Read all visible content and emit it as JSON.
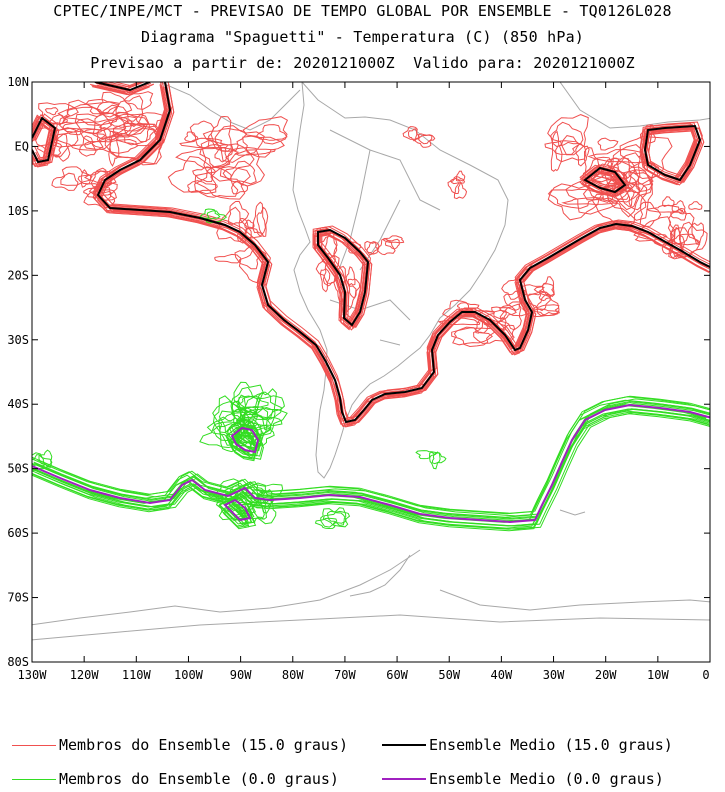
{
  "title": {
    "line1": "CPTEC/INPE/MCT - PREVISAO DE TEMPO GLOBAL POR ENSEMBLE - TQ0126L028",
    "line2": "Diagrama \"Spaguetti\" - Temperatura (C) (850 hPa)",
    "line3": "Previsao a partir de: 2020121000Z  Valido para: 2020121000Z"
  },
  "map": {
    "lon_range": [
      -130,
      0
    ],
    "lat_range": [
      -80,
      10
    ],
    "x_ticks": [
      "130W",
      "120W",
      "110W",
      "100W",
      "90W",
      "80W",
      "70W",
      "60W",
      "50W",
      "40W",
      "30W",
      "20W",
      "10W",
      "0"
    ],
    "y_ticks": [
      "10N",
      "EQ",
      "10S",
      "20S",
      "30S",
      "40S",
      "50S",
      "60S",
      "70S",
      "80S"
    ]
  },
  "legend": [
    {
      "label": "Membros do Ensemble (15.0 graus)",
      "color": "#f0504f"
    },
    {
      "label": "Ensemble Medio (15.0 graus)",
      "color": "#000000"
    },
    {
      "label": "Membros do Ensemble (0.0 graus)",
      "color": "#33dd22"
    },
    {
      "label": "Ensemble Medio (0.0 graus)",
      "color": "#a020c0"
    }
  ],
  "colors": {
    "coast": "#a8a8a8",
    "frame": "#000000"
  }
}
